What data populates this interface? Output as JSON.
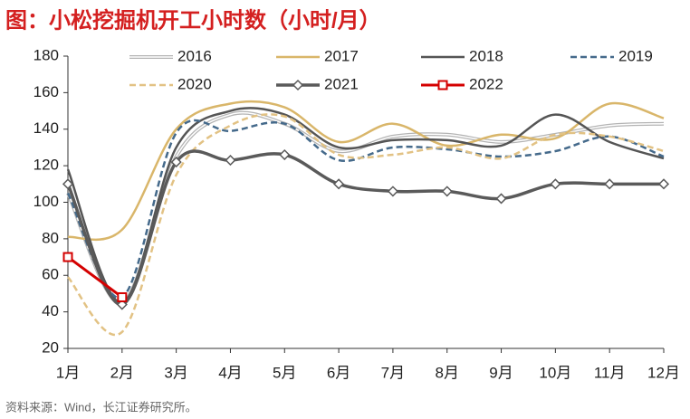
{
  "title": "图：小松挖掘机开工小时数（小时/月）",
  "source": "资料来源：Wind，长江证券研究所。",
  "chart_data": {
    "type": "line",
    "categories": [
      "1月",
      "2月",
      "3月",
      "4月",
      "5月",
      "6月",
      "7月",
      "8月",
      "9月",
      "10月",
      "11月",
      "12月"
    ],
    "ylim": [
      20,
      180
    ],
    "yticks": [
      20,
      40,
      60,
      80,
      100,
      120,
      140,
      160,
      180
    ],
    "series": [
      {
        "name": "2016",
        "color": "#b4b4b4",
        "double": true,
        "values": [
          105,
          45,
          125,
          148,
          143,
          128,
          136,
          137,
          133,
          137,
          142,
          143
        ]
      },
      {
        "name": "2017",
        "color": "#d9b66a",
        "values": [
          81,
          85,
          140,
          154,
          152,
          133,
          143,
          131,
          137,
          135,
          154,
          146
        ]
      },
      {
        "name": "2018",
        "color": "#555555",
        "values": [
          118,
          45,
          130,
          150,
          148,
          130,
          134,
          134,
          131,
          148,
          133,
          124
        ]
      },
      {
        "name": "2019",
        "color": "#456a8b",
        "dashed": true,
        "values": [
          105,
          48,
          138,
          139,
          143,
          123,
          130,
          129,
          125,
          128,
          136,
          125
        ]
      },
      {
        "name": "2020",
        "color": "#e2c284",
        "dashed": true,
        "values": [
          59,
          29,
          115,
          142,
          147,
          126,
          126,
          130,
          124,
          137,
          136,
          128
        ]
      },
      {
        "name": "2021",
        "color": "#5a5a5a",
        "marker": "diamond",
        "values": [
          110,
          44,
          122,
          123,
          126,
          110,
          106,
          106,
          102,
          110,
          110,
          110
        ]
      },
      {
        "name": "2022",
        "color": "#d40000",
        "marker": "square",
        "values": [
          70,
          48,
          null,
          null,
          null,
          null,
          null,
          null,
          null,
          null,
          null,
          null
        ]
      }
    ]
  }
}
